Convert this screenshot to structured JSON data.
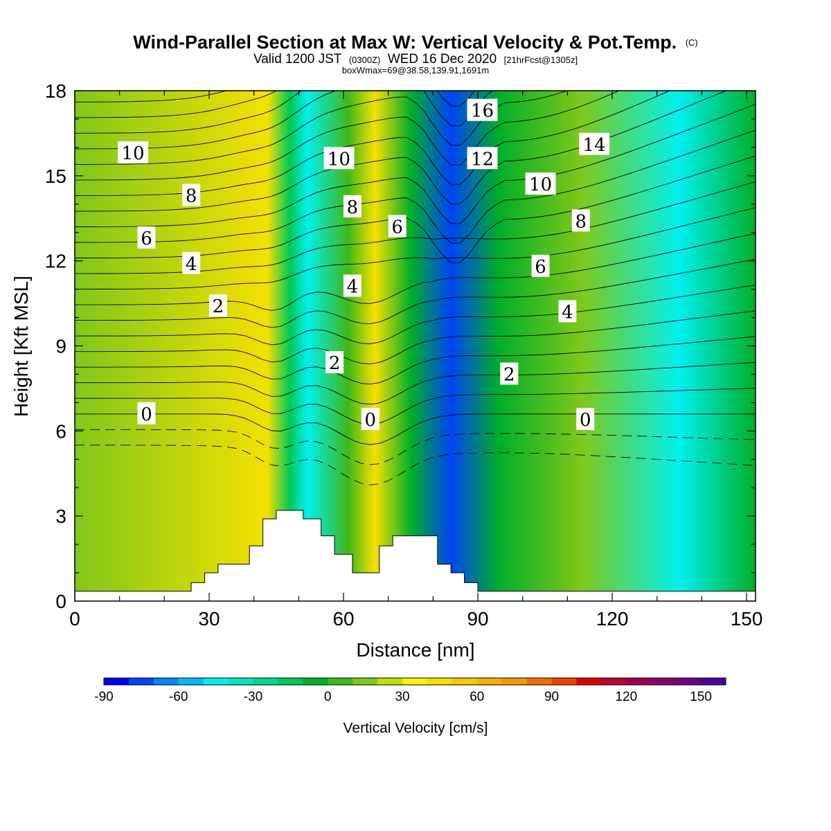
{
  "chart_data": {
    "type": "heatmap",
    "title": "Wind-Parallel Section at Max W: Vertical Velocity & Pot.Temp.",
    "title_mark": "(C)",
    "subtitle": "Valid 1200 JST (0300Z) WED 16 Dec 2020 [21hrFcst@1305z]",
    "subtitle_parts": {
      "valid": "Valid 1200 JST",
      "utc": "(0300Z)",
      "date": "WED 16 Dec 2020",
      "fcst": "[21hrFcst@1305z]"
    },
    "info": "boxWmax=69@38.58,139.91,1691m",
    "xlabel": "Distance [nm]",
    "ylabel": "Height [Kft MSL]",
    "xlim": [
      0,
      152
    ],
    "ylim": [
      0,
      18
    ],
    "x_ticks": [
      0,
      30,
      60,
      90,
      120,
      150
    ],
    "y_ticks": [
      0,
      3,
      6,
      9,
      12,
      15,
      18
    ],
    "colorbar": {
      "label": "Vertical Velocity [cm/s]",
      "ticks": [
        -90,
        -60,
        -30,
        0,
        30,
        60,
        90,
        120,
        150
      ],
      "levels": [
        -90,
        -80,
        -70,
        -60,
        -50,
        -40,
        -30,
        -20,
        -10,
        0,
        10,
        20,
        30,
        40,
        50,
        60,
        70,
        80,
        90,
        100,
        110,
        120,
        130,
        140,
        150,
        160
      ],
      "colors": [
        "#0000f5",
        "#0044f5",
        "#0088f5",
        "#00bbf5",
        "#00f0f0",
        "#00e8c0",
        "#00d890",
        "#00c858",
        "#00b028",
        "#40b818",
        "#80c818",
        "#c0e000",
        "#f5f500",
        "#f5e000",
        "#f5c800",
        "#f5b000",
        "#f59800",
        "#f57000",
        "#f54000",
        "#e00000",
        "#c00030",
        "#a00050",
        "#880068",
        "#700088",
        "#5000a0"
      ]
    },
    "velocity_bands": [
      {
        "x": 43,
        "w_cms": 45
      },
      {
        "x": 48,
        "w_cms": -15
      },
      {
        "x": 52,
        "w_cms": -45
      },
      {
        "x": 61,
        "w_cms": 0
      },
      {
        "x": 67,
        "w_cms": 45
      },
      {
        "x": 75,
        "w_cms": -5
      },
      {
        "x": 84,
        "w_cms": -80
      },
      {
        "x": 95,
        "w_cms": -5
      },
      {
        "x": 113,
        "w_cms": 15
      },
      {
        "x": 135,
        "w_cms": -50
      }
    ],
    "terrain_kft": [
      [
        0,
        0.35
      ],
      [
        26,
        0.35
      ],
      [
        26,
        0.65
      ],
      [
        29,
        0.65
      ],
      [
        29,
        1.0
      ],
      [
        32,
        1.0
      ],
      [
        32,
        1.3
      ],
      [
        39,
        1.3
      ],
      [
        39,
        1.95
      ],
      [
        42,
        1.95
      ],
      [
        42,
        2.9
      ],
      [
        45,
        2.9
      ],
      [
        45,
        3.2
      ],
      [
        51,
        3.2
      ],
      [
        51,
        2.9
      ],
      [
        55,
        2.9
      ],
      [
        55,
        2.3
      ],
      [
        58,
        2.3
      ],
      [
        58,
        1.65
      ],
      [
        62,
        1.65
      ],
      [
        62,
        1.0
      ],
      [
        68,
        1.0
      ],
      [
        68,
        1.95
      ],
      [
        71,
        1.95
      ],
      [
        71,
        2.3
      ],
      [
        81,
        2.3
      ],
      [
        81,
        1.3
      ],
      [
        84,
        1.3
      ],
      [
        84,
        1.0
      ],
      [
        87,
        1.0
      ],
      [
        87,
        0.65
      ],
      [
        90,
        0.65
      ],
      [
        90,
        0.35
      ],
      [
        152,
        0.35
      ]
    ],
    "pot_temp_contours": {
      "interval_C": 1,
      "labels": [
        {
          "value": "0",
          "x": 16,
          "y": 6.6
        },
        {
          "value": "2",
          "x": 32,
          "y": 10.4
        },
        {
          "value": "4",
          "x": 26,
          "y": 11.9
        },
        {
          "value": "6",
          "x": 16,
          "y": 12.8
        },
        {
          "value": "8",
          "x": 26,
          "y": 14.3
        },
        {
          "value": "10",
          "x": 13,
          "y": 15.8
        },
        {
          "value": "0",
          "x": 66,
          "y": 6.4
        },
        {
          "value": "2",
          "x": 58,
          "y": 8.4
        },
        {
          "value": "4",
          "x": 62,
          "y": 11.1
        },
        {
          "value": "6",
          "x": 72,
          "y": 13.2
        },
        {
          "value": "8",
          "x": 62,
          "y": 13.9
        },
        {
          "value": "10",
          "x": 59,
          "y": 15.6
        },
        {
          "value": "12",
          "x": 91,
          "y": 15.6
        },
        {
          "value": "16",
          "x": 91,
          "y": 17.3
        },
        {
          "value": "2",
          "x": 97,
          "y": 8.0
        },
        {
          "value": "4",
          "x": 110,
          "y": 10.2
        },
        {
          "value": "6",
          "x": 104,
          "y": 11.8
        },
        {
          "value": "8",
          "x": 113,
          "y": 13.4
        },
        {
          "value": "10",
          "x": 104,
          "y": 14.7
        },
        {
          "value": "14",
          "x": 116,
          "y": 16.1
        },
        {
          "value": "0",
          "x": 114,
          "y": 6.4
        }
      ]
    }
  }
}
